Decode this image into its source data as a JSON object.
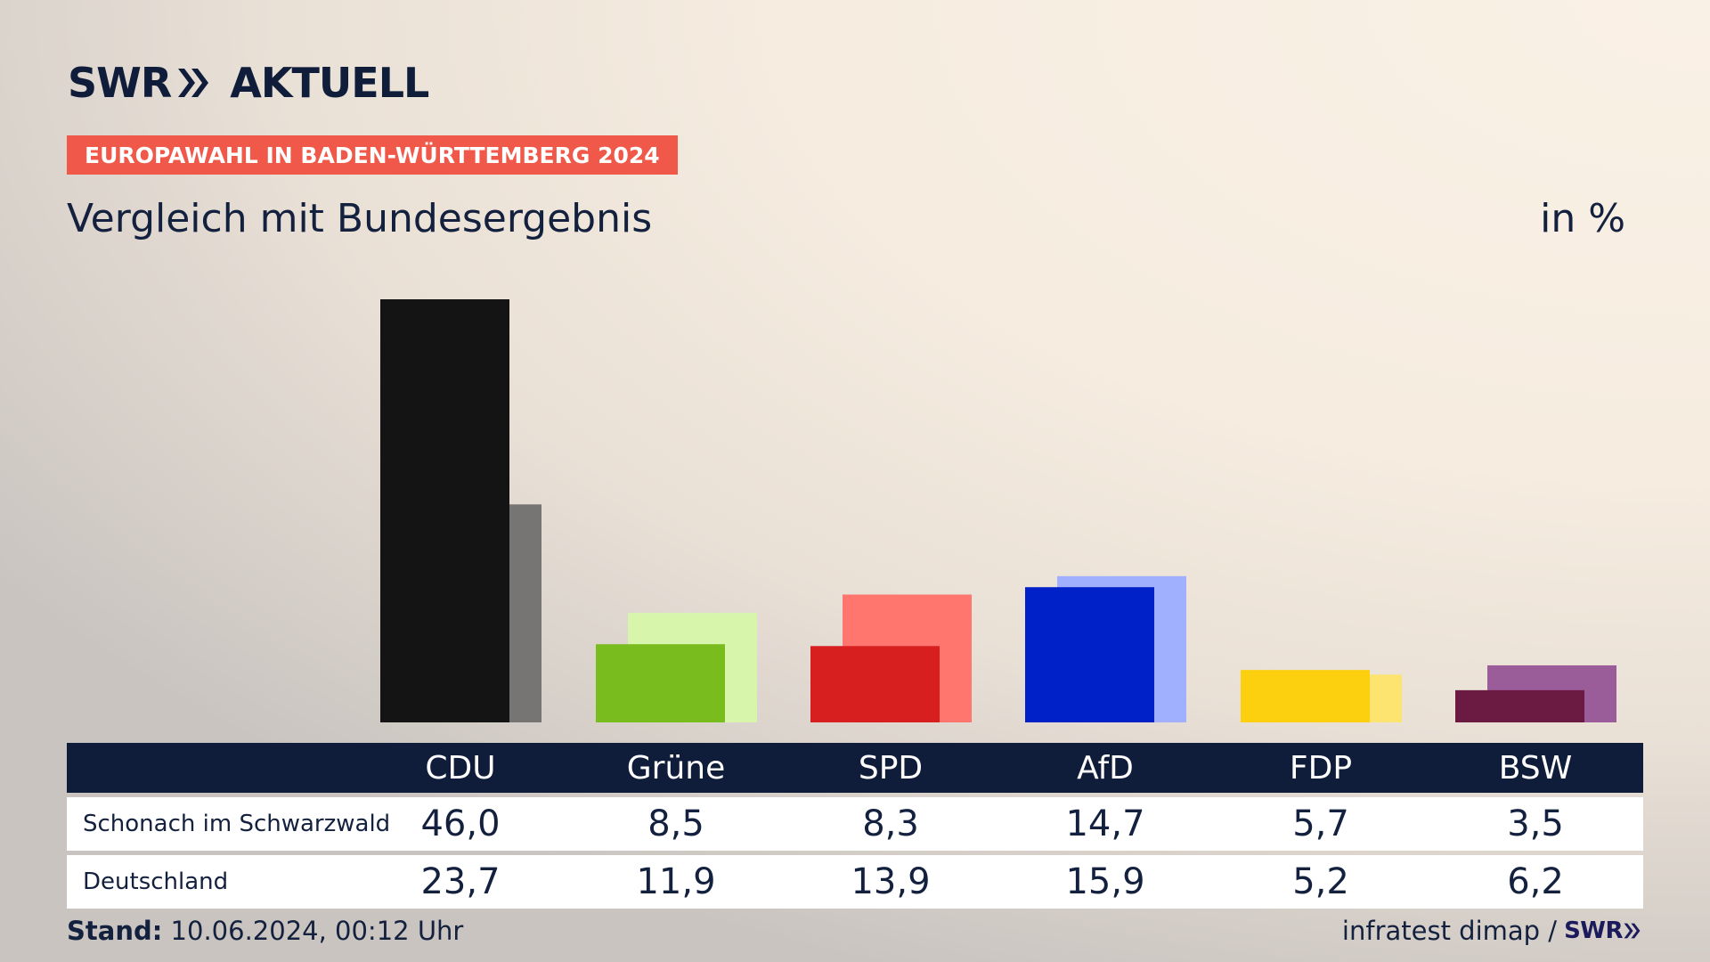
{
  "logo": {
    "text": "SWR",
    "suffix": "AKTUELL"
  },
  "badge": "EUROPAWAHL IN BADEN-WÜRTTEMBERG 2024",
  "subtitle": "Vergleich mit Bundesergebnis",
  "unit": "in %",
  "table": {
    "rows": [
      {
        "label": "Schonach im Schwarzwald",
        "values": [
          "46,0",
          "8,5",
          "8,3",
          "14,7",
          "5,7",
          "3,5"
        ]
      },
      {
        "label": "Deutschland",
        "values": [
          "23,7",
          "11,9",
          "13,9",
          "15,9",
          "5,2",
          "6,2"
        ]
      }
    ]
  },
  "footer": {
    "stand_label": "Stand:",
    "stand_value": "10.06.2024, 00:12 Uhr",
    "source": "infratest dimap /",
    "source_logo": "SWR"
  },
  "chart_data": {
    "type": "bar",
    "categories": [
      "CDU",
      "Grüne",
      "SPD",
      "AfD",
      "FDP",
      "BSW"
    ],
    "series": [
      {
        "name": "Schonach im Schwarzwald",
        "values": [
          46.0,
          8.5,
          8.3,
          14.7,
          5.7,
          3.5
        ],
        "colors": [
          "#141414",
          "#78bc1e",
          "#d71f1f",
          "#0021c8",
          "#fcd00f",
          "#6b1a42"
        ]
      },
      {
        "name": "Deutschland",
        "values": [
          23.7,
          11.9,
          13.9,
          15.9,
          5.2,
          6.2
        ],
        "colors": [
          "#767574",
          "#d7f5ab",
          "#ff766e",
          "#a0b0ff",
          "#fde370",
          "#9b5c9a"
        ]
      }
    ],
    "ylim": [
      0,
      46
    ],
    "grid": false,
    "legend": "none"
  }
}
